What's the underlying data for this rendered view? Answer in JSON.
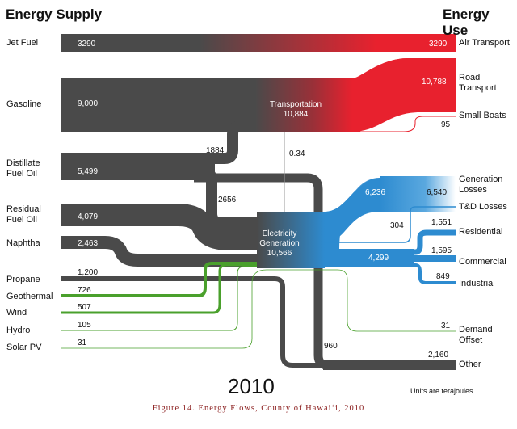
{
  "headers": {
    "supply": "Energy Supply",
    "use": "Energy Use"
  },
  "supply_labels": {
    "jet_fuel": "Jet Fuel",
    "gasoline": "Gasoline",
    "distillate": [
      "Distillate",
      "Fuel Oil"
    ],
    "residual": [
      "Residual",
      "Fuel Oil"
    ],
    "naphtha": "Naphtha",
    "propane": "Propane",
    "geothermal": "Geothermal",
    "wind": "Wind",
    "hydro": "Hydro",
    "solar": "Solar PV"
  },
  "use_labels": {
    "air": "Air Transport",
    "road": [
      "Road",
      "Transport"
    ],
    "boats": "Small Boats",
    "gen_losses": [
      "Generation",
      "Losses"
    ],
    "td_losses": "T&D Losses",
    "residential": "Residential",
    "commercial": "Commercial",
    "industrial": "Industrial",
    "demand_offset": [
      "Demand",
      "Offset"
    ],
    "other": "Other"
  },
  "hubs": {
    "transport": [
      "Transportation",
      "10,884"
    ],
    "electricity": [
      "Electricity",
      "Generation",
      "10,566"
    ]
  },
  "values": {
    "jet_fuel": "3290",
    "air": "3290",
    "gasoline": "9,000",
    "road": "10,788",
    "boats": "95",
    "dist_to_transport": "1884",
    "dist_total": "5,499",
    "dist_to_elec": "2656",
    "elec_to_transport": "0.34",
    "residual": "4,079",
    "naphtha": "2,463",
    "gen_loss_in": "6,236",
    "gen_loss_out": "6,540",
    "td": "304",
    "residential": "1,551",
    "commercial_in": "4,299",
    "commercial": "1,595",
    "industrial": "849",
    "propane": "1,200",
    "geothermal": "726",
    "wind": "507",
    "hydro": "105",
    "solar": "31",
    "demand_offset": "31",
    "other_in": "960",
    "other": "2,160"
  },
  "year": "2010",
  "units": "Units are terajoules",
  "caption": "Figure 14. Energy Flows, County of Hawai‘i, 2010",
  "colors": {
    "fossil": "#4a4a4a",
    "transport": "#e8212e",
    "electric": "#2d8bd0",
    "renewable": "#4aa02c"
  }
}
